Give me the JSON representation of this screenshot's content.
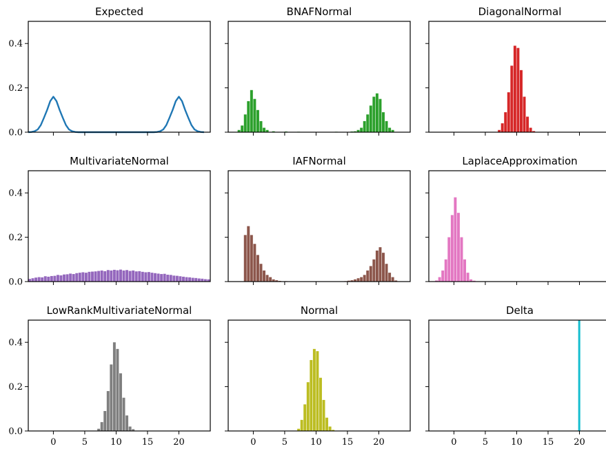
{
  "chart_data": [
    {
      "type": "line",
      "title": "Expected",
      "xlim": [
        -4,
        25
      ],
      "ylim": [
        0,
        0.5
      ],
      "x_ticks": [
        0,
        5,
        10,
        15,
        20
      ],
      "y_ticks": [
        0.0,
        0.2,
        0.4
      ],
      "y_tick_labels": [
        "0.0",
        "0.2",
        "0.4"
      ],
      "color": "#1f77b4",
      "series": [
        {
          "x": [
            -4,
            -3.5,
            -3,
            -2.5,
            -2,
            -1.5,
            -1,
            -0.5,
            0,
            0.5,
            1,
            1.5,
            2,
            2.5,
            3,
            3.5,
            4,
            5,
            6,
            8,
            10,
            12,
            14,
            15,
            16,
            16.5,
            17,
            17.5,
            18,
            18.5,
            19,
            19.5,
            20,
            20.5,
            21,
            21.5,
            22,
            22.5,
            23,
            23.5,
            24
          ],
          "y": [
            0.0,
            0.001,
            0.004,
            0.012,
            0.032,
            0.065,
            0.1,
            0.14,
            0.16,
            0.14,
            0.1,
            0.065,
            0.032,
            0.012,
            0.004,
            0.001,
            0.0,
            0.0,
            0.0,
            0.0,
            0.0,
            0.0,
            0.0,
            0.0,
            0.0,
            0.001,
            0.004,
            0.012,
            0.032,
            0.065,
            0.1,
            0.14,
            0.16,
            0.14,
            0.1,
            0.065,
            0.032,
            0.012,
            0.004,
            0.001,
            0.0
          ]
        }
      ]
    },
    {
      "type": "bar",
      "title": "BNAFNormal",
      "xlim": [
        -4,
        25
      ],
      "ylim": [
        0,
        0.5
      ],
      "x_ticks": [
        0,
        5,
        10,
        15,
        20
      ],
      "y_ticks": [
        0.0,
        0.2,
        0.4
      ],
      "color": "#2ca02c",
      "bin_width": 0.5,
      "bins": [
        [
          -2.5,
          0.01
        ],
        [
          -2.0,
          0.03
        ],
        [
          -1.5,
          0.08
        ],
        [
          -1.0,
          0.14
        ],
        [
          -0.5,
          0.19
        ],
        [
          0.0,
          0.15
        ],
        [
          0.5,
          0.1
        ],
        [
          1.0,
          0.05
        ],
        [
          1.5,
          0.02
        ],
        [
          2.0,
          0.01
        ],
        [
          3.0,
          0.004
        ],
        [
          5.0,
          0.003
        ],
        [
          7.0,
          0.002
        ],
        [
          13.0,
          0.002
        ],
        [
          15.5,
          0.003
        ],
        [
          16.0,
          0.004
        ],
        [
          16.5,
          0.01
        ],
        [
          17.0,
          0.02
        ],
        [
          17.5,
          0.05
        ],
        [
          18.0,
          0.08
        ],
        [
          18.5,
          0.12
        ],
        [
          19.0,
          0.16
        ],
        [
          19.5,
          0.175
        ],
        [
          20.0,
          0.15
        ],
        [
          20.5,
          0.09
        ],
        [
          21.0,
          0.05
        ],
        [
          21.5,
          0.02
        ],
        [
          22.0,
          0.01
        ]
      ]
    },
    {
      "type": "bar",
      "title": "DiagonalNormal",
      "xlim": [
        -4,
        25
      ],
      "ylim": [
        0,
        0.5
      ],
      "x_ticks": [
        0,
        5,
        10,
        15,
        20
      ],
      "y_ticks": [
        0.0,
        0.2,
        0.4
      ],
      "color": "#d62728",
      "bin_width": 0.5,
      "bins": [
        [
          7.0,
          0.01
        ],
        [
          7.5,
          0.04
        ],
        [
          8.0,
          0.09
        ],
        [
          8.5,
          0.18
        ],
        [
          9.0,
          0.3
        ],
        [
          9.5,
          0.39
        ],
        [
          10.0,
          0.38
        ],
        [
          10.5,
          0.28
        ],
        [
          11.0,
          0.16
        ],
        [
          11.5,
          0.07
        ],
        [
          12.0,
          0.02
        ],
        [
          12.5,
          0.005
        ]
      ]
    },
    {
      "type": "bar",
      "title": "MultivariateNormal",
      "xlim": [
        -4,
        25
      ],
      "ylim": [
        0,
        0.5
      ],
      "x_ticks": [
        0,
        5,
        10,
        15,
        20
      ],
      "y_ticks": [
        0.0,
        0.2,
        0.4
      ],
      "y_tick_labels": [
        "0.0",
        "0.2",
        "0.4"
      ],
      "color": "#9467bd",
      "bin_width": 0.5,
      "bins": [
        [
          -4.0,
          0.012
        ],
        [
          -3.5,
          0.015
        ],
        [
          -3.0,
          0.018
        ],
        [
          -2.5,
          0.02
        ],
        [
          -2.0,
          0.019
        ],
        [
          -1.5,
          0.024
        ],
        [
          -1.0,
          0.022
        ],
        [
          -0.5,
          0.025
        ],
        [
          0.0,
          0.026
        ],
        [
          0.5,
          0.03
        ],
        [
          1.0,
          0.028
        ],
        [
          1.5,
          0.032
        ],
        [
          2.0,
          0.033
        ],
        [
          2.5,
          0.036
        ],
        [
          3.0,
          0.034
        ],
        [
          3.5,
          0.038
        ],
        [
          4.0,
          0.04
        ],
        [
          4.5,
          0.042
        ],
        [
          5.0,
          0.04
        ],
        [
          5.5,
          0.044
        ],
        [
          6.0,
          0.045
        ],
        [
          6.5,
          0.046
        ],
        [
          7.0,
          0.048
        ],
        [
          7.5,
          0.05
        ],
        [
          8.0,
          0.047
        ],
        [
          8.5,
          0.052
        ],
        [
          9.0,
          0.05
        ],
        [
          9.5,
          0.053
        ],
        [
          10.0,
          0.051
        ],
        [
          10.5,
          0.054
        ],
        [
          11.0,
          0.05
        ],
        [
          11.5,
          0.052
        ],
        [
          12.0,
          0.048
        ],
        [
          12.5,
          0.05
        ],
        [
          13.0,
          0.046
        ],
        [
          13.5,
          0.047
        ],
        [
          14.0,
          0.044
        ],
        [
          14.5,
          0.042
        ],
        [
          15.0,
          0.043
        ],
        [
          15.5,
          0.04
        ],
        [
          16.0,
          0.038
        ],
        [
          16.5,
          0.036
        ],
        [
          17.0,
          0.034
        ],
        [
          17.5,
          0.035
        ],
        [
          18.0,
          0.031
        ],
        [
          18.5,
          0.03
        ],
        [
          19.0,
          0.027
        ],
        [
          19.5,
          0.026
        ],
        [
          20.0,
          0.024
        ],
        [
          20.5,
          0.022
        ],
        [
          21.0,
          0.02
        ],
        [
          21.5,
          0.019
        ],
        [
          22.0,
          0.017
        ],
        [
          22.5,
          0.016
        ],
        [
          23.0,
          0.014
        ],
        [
          23.5,
          0.013
        ],
        [
          24.0,
          0.011
        ],
        [
          24.5,
          0.01
        ]
      ]
    },
    {
      "type": "bar",
      "title": "IAFNormal",
      "xlim": [
        -4,
        25
      ],
      "ylim": [
        0,
        0.5
      ],
      "x_ticks": [
        0,
        5,
        10,
        15,
        20
      ],
      "y_ticks": [
        0.0,
        0.2,
        0.4
      ],
      "color": "#8c564b",
      "bin_width": 0.5,
      "bins": [
        [
          -1.5,
          0.21
        ],
        [
          -1.0,
          0.25
        ],
        [
          -0.5,
          0.21
        ],
        [
          0.0,
          0.17
        ],
        [
          0.5,
          0.12
        ],
        [
          1.0,
          0.08
        ],
        [
          1.5,
          0.05
        ],
        [
          2.0,
          0.03
        ],
        [
          2.5,
          0.02
        ],
        [
          3.0,
          0.01
        ],
        [
          3.5,
          0.006
        ],
        [
          4.0,
          0.003
        ],
        [
          5.0,
          0.002
        ],
        [
          14.5,
          0.002
        ],
        [
          15.0,
          0.004
        ],
        [
          15.5,
          0.006
        ],
        [
          16.0,
          0.01
        ],
        [
          16.5,
          0.015
        ],
        [
          17.0,
          0.02
        ],
        [
          17.5,
          0.03
        ],
        [
          18.0,
          0.05
        ],
        [
          18.5,
          0.07
        ],
        [
          19.0,
          0.1
        ],
        [
          19.5,
          0.14
        ],
        [
          20.0,
          0.155
        ],
        [
          20.5,
          0.13
        ],
        [
          21.0,
          0.08
        ],
        [
          21.5,
          0.04
        ],
        [
          22.0,
          0.02
        ],
        [
          22.5,
          0.005
        ]
      ]
    },
    {
      "type": "bar",
      "title": "LaplaceApproximation",
      "xlim": [
        -4,
        25
      ],
      "ylim": [
        0,
        0.5
      ],
      "x_ticks": [
        0,
        5,
        10,
        15,
        20
      ],
      "y_ticks": [
        0.0,
        0.2,
        0.4
      ],
      "color": "#e377c2",
      "bin_width": 0.5,
      "bins": [
        [
          -3.0,
          0.005
        ],
        [
          -2.5,
          0.02
        ],
        [
          -2.0,
          0.05
        ],
        [
          -1.5,
          0.1
        ],
        [
          -1.0,
          0.2
        ],
        [
          -0.5,
          0.3
        ],
        [
          0.0,
          0.38
        ],
        [
          0.5,
          0.31
        ],
        [
          1.0,
          0.2
        ],
        [
          1.5,
          0.1
        ],
        [
          2.0,
          0.04
        ],
        [
          2.5,
          0.01
        ],
        [
          3.0,
          0.004
        ]
      ]
    },
    {
      "type": "bar",
      "title": "LowRankMultivariateNormal",
      "xlim": [
        -4,
        25
      ],
      "ylim": [
        0,
        0.5
      ],
      "x_ticks": [
        0,
        5,
        10,
        15,
        20
      ],
      "x_tick_labels": [
        "0",
        "5",
        "10",
        "15",
        "20"
      ],
      "y_ticks": [
        0.0,
        0.2,
        0.4
      ],
      "y_tick_labels": [
        "0.0",
        "0.2",
        "0.4"
      ],
      "color": "#7f7f7f",
      "bin_width": 0.5,
      "bins": [
        [
          7.0,
          0.01
        ],
        [
          7.5,
          0.04
        ],
        [
          8.0,
          0.09
        ],
        [
          8.5,
          0.18
        ],
        [
          9.0,
          0.3
        ],
        [
          9.5,
          0.4
        ],
        [
          10.0,
          0.37
        ],
        [
          10.5,
          0.26
        ],
        [
          11.0,
          0.15
        ],
        [
          11.5,
          0.07
        ],
        [
          12.0,
          0.02
        ],
        [
          12.5,
          0.008
        ]
      ]
    },
    {
      "type": "bar",
      "title": "Normal",
      "xlim": [
        -4,
        25
      ],
      "ylim": [
        0,
        0.5
      ],
      "x_ticks": [
        0,
        5,
        10,
        15,
        20
      ],
      "x_tick_labels": [
        "0",
        "5",
        "10",
        "15",
        "20"
      ],
      "y_ticks": [
        0.0,
        0.2,
        0.4
      ],
      "color": "#bcbd22",
      "bin_width": 0.5,
      "bins": [
        [
          7.0,
          0.01
        ],
        [
          7.5,
          0.05
        ],
        [
          8.0,
          0.12
        ],
        [
          8.5,
          0.22
        ],
        [
          9.0,
          0.32
        ],
        [
          9.5,
          0.37
        ],
        [
          10.0,
          0.36
        ],
        [
          10.5,
          0.24
        ],
        [
          11.0,
          0.14
        ],
        [
          11.5,
          0.06
        ],
        [
          12.0,
          0.02
        ],
        [
          12.5,
          0.005
        ]
      ]
    },
    {
      "type": "bar",
      "title": "Delta",
      "xlim": [
        -4,
        25
      ],
      "ylim": [
        0,
        0.5
      ],
      "x_ticks": [
        0,
        5,
        10,
        15,
        20
      ],
      "x_tick_labels": [
        "0",
        "5",
        "10",
        "15",
        "20"
      ],
      "y_ticks": [
        0.0,
        0.2,
        0.4
      ],
      "color": "#17becf",
      "bin_width": 0.5,
      "bins": [
        [
          20.0,
          0.5
        ]
      ]
    }
  ]
}
